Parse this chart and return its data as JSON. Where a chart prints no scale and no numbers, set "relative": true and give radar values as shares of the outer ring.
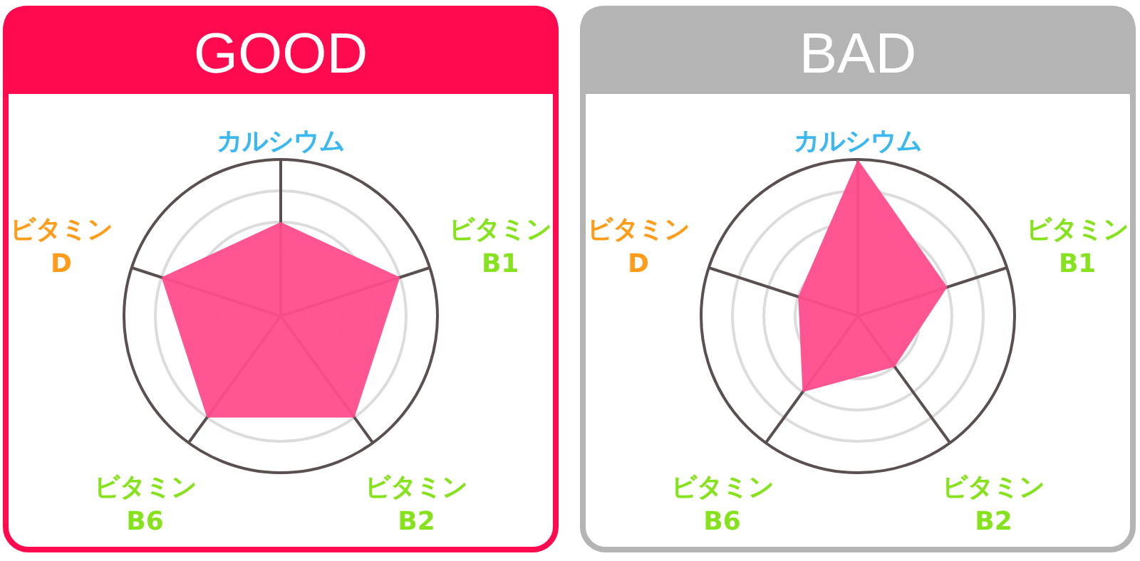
{
  "chart_data": [
    {
      "type": "radar",
      "title": "GOOD",
      "relative": true,
      "categories": [
        "カルシウム",
        "ビタミン\nB1",
        "ビタミン\nB2",
        "ビタミン\nB6",
        "ビタミン\nD"
      ],
      "series": [
        {
          "color": "#ff4d8d",
          "values": [
            0.6,
            0.8,
            0.8,
            0.8,
            0.8
          ]
        }
      ]
    },
    {
      "type": "radar",
      "title": "BAD",
      "relative": true,
      "categories": [
        "カルシウム",
        "ビタミン\nB1",
        "ビタミン\nB2",
        "ビタミン\nB6",
        "ビタミン\nD"
      ],
      "series": [
        {
          "color": "#ff4d8d",
          "values": [
            1.0,
            0.6,
            0.4,
            0.6,
            0.4
          ]
        }
      ]
    }
  ]
}
